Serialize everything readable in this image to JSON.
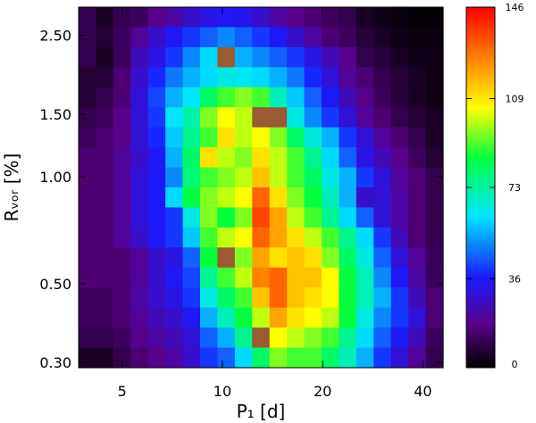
{
  "chart_data": {
    "type": "heatmap",
    "xlabel": "P₁ [d]",
    "ylabel": "Rᵥₒᵣ [%]",
    "x_scale": "log",
    "y_scale": "log",
    "xlim": [
      3.7,
      46
    ],
    "ylim": [
      0.29,
      3.0
    ],
    "x_ticks": [
      5,
      10,
      20,
      40
    ],
    "x_tick_labels": [
      "5",
      "10",
      "20",
      "40"
    ],
    "y_ticks": [
      0.3,
      0.5,
      1.0,
      1.5,
      2.5
    ],
    "y_tick_labels": [
      "0.30",
      "0.50",
      "1.00",
      "1.50",
      "2.50"
    ],
    "colorbar": {
      "min": 0,
      "max": 146,
      "ticks": [
        0,
        36,
        73,
        109,
        146
      ],
      "tick_labels": [
        "0",
        "36",
        "73",
        "109",
        "146"
      ],
      "colormap": "rainbow (black-purple-blue-cyan-green-yellow-red)"
    },
    "grid_shape": [
      18,
      21
    ],
    "row_order": "top_to_bottom",
    "values": [
      [
        10,
        5,
        10,
        12,
        18,
        22,
        28,
        32,
        35,
        33,
        28,
        22,
        18,
        15,
        12,
        10,
        5,
        3,
        2,
        1,
        1
      ],
      [
        10,
        7,
        12,
        20,
        28,
        35,
        40,
        45,
        50,
        45,
        40,
        35,
        28,
        22,
        15,
        12,
        8,
        5,
        3,
        2,
        2
      ],
      [
        10,
        5,
        12,
        25,
        32,
        40,
        50,
        60,
        58,
        55,
        50,
        45,
        40,
        32,
        25,
        18,
        10,
        8,
        5,
        3,
        3
      ],
      [
        7,
        7,
        15,
        28,
        38,
        48,
        55,
        60,
        65,
        63,
        60,
        55,
        48,
        38,
        30,
        20,
        15,
        10,
        7,
        5,
        3
      ],
      [
        7,
        10,
        15,
        30,
        42,
        55,
        62,
        80,
        90,
        95,
        90,
        70,
        58,
        45,
        35,
        25,
        18,
        12,
        8,
        5,
        3
      ],
      [
        10,
        12,
        18,
        30,
        40,
        62,
        72,
        95,
        105,
        100,
        90,
        78,
        65,
        50,
        40,
        30,
        20,
        15,
        10,
        7,
        5
      ],
      [
        12,
        15,
        18,
        30,
        38,
        58,
        75,
        90,
        110,
        100,
        105,
        95,
        80,
        65,
        55,
        40,
        30,
        20,
        15,
        10,
        5
      ],
      [
        15,
        15,
        20,
        28,
        35,
        55,
        80,
        110,
        100,
        95,
        110,
        100,
        90,
        75,
        60,
        45,
        32,
        25,
        18,
        12,
        7
      ],
      [
        15,
        15,
        20,
        30,
        35,
        50,
        78,
        90,
        95,
        100,
        115,
        100,
        90,
        80,
        65,
        55,
        40,
        30,
        20,
        15,
        10
      ],
      [
        15,
        15,
        20,
        30,
        35,
        60,
        85,
        95,
        100,
        105,
        130,
        110,
        95,
        85,
        70,
        55,
        28,
        30,
        22,
        15,
        10
      ],
      [
        15,
        15,
        20,
        30,
        35,
        40,
        65,
        95,
        85,
        95,
        135,
        120,
        100,
        90,
        75,
        60,
        45,
        30,
        22,
        15,
        10
      ],
      [
        15,
        15,
        20,
        28,
        35,
        40,
        58,
        90,
        100,
        105,
        130,
        120,
        110,
        100,
        90,
        75,
        60,
        40,
        25,
        15,
        10
      ],
      [
        15,
        15,
        15,
        20,
        28,
        32,
        45,
        85,
        90,
        95,
        120,
        110,
        115,
        110,
        95,
        80,
        65,
        45,
        30,
        20,
        12
      ],
      [
        15,
        15,
        15,
        20,
        28,
        35,
        42,
        75,
        90,
        100,
        125,
        130,
        115,
        115,
        105,
        85,
        70,
        50,
        35,
        22,
        12
      ],
      [
        12,
        12,
        15,
        22,
        28,
        32,
        40,
        65,
        80,
        90,
        115,
        130,
        115,
        110,
        105,
        85,
        70,
        55,
        40,
        25,
        15
      ],
      [
        12,
        12,
        15,
        20,
        25,
        28,
        35,
        55,
        70,
        85,
        100,
        120,
        110,
        105,
        100,
        85,
        65,
        50,
        40,
        30,
        15
      ],
      [
        10,
        10,
        12,
        18,
        22,
        25,
        30,
        45,
        55,
        75,
        95,
        105,
        100,
        95,
        90,
        75,
        60,
        45,
        35,
        25,
        12
      ],
      [
        5,
        5,
        10,
        15,
        18,
        22,
        28,
        40,
        45,
        60,
        80,
        95,
        90,
        90,
        80,
        70,
        55,
        40,
        30,
        20,
        10
      ]
    ],
    "highlight_cells": [
      {
        "row": 2,
        "col": 8,
        "value": 150
      },
      {
        "row": 5,
        "col": 10,
        "value": 150
      },
      {
        "row": 5,
        "col": 11,
        "value": 150
      },
      {
        "row": 12,
        "col": 8,
        "value": 150
      },
      {
        "row": 16,
        "col": 10,
        "value": 150
      }
    ]
  }
}
